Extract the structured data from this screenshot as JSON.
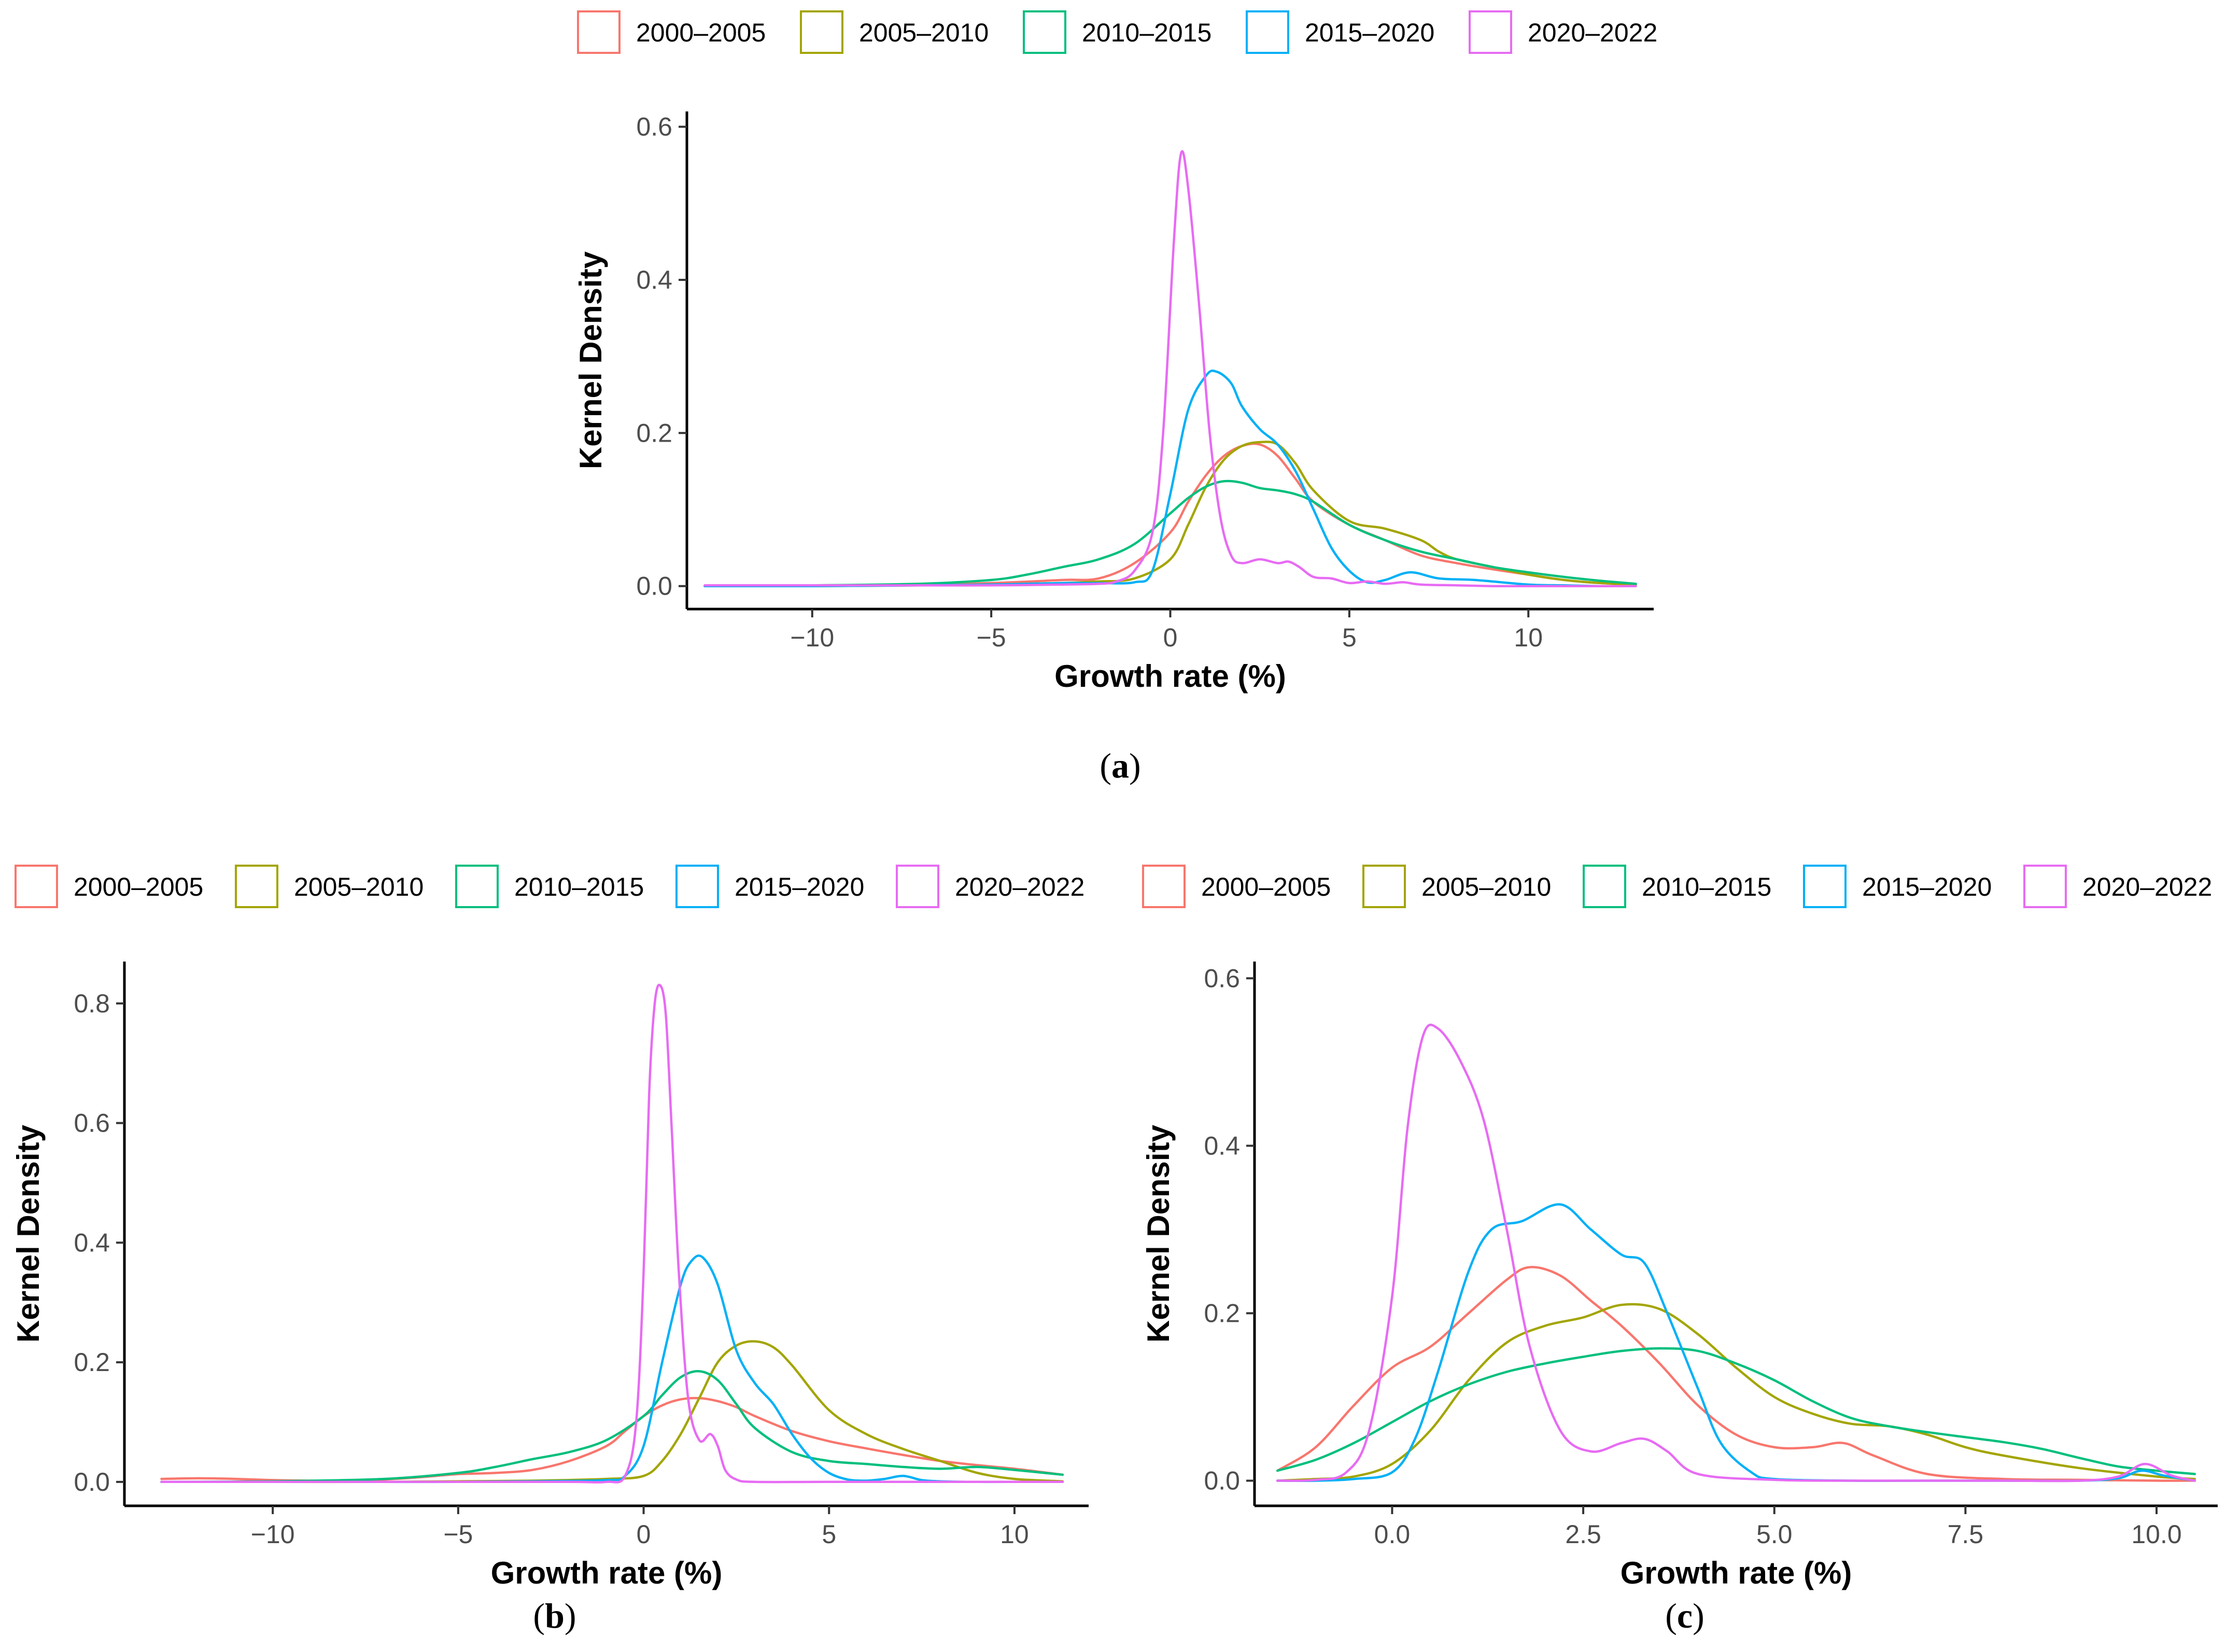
{
  "figure": {
    "colors": {
      "2000–2005": "#F8766D",
      "2005–2010": "#A3A500",
      "2010–2015": "#00BF7D",
      "2015–2020": "#00B0F6",
      "2020–2022": "#E76BF3"
    }
  },
  "chart_data": [
    {
      "id": "a",
      "type": "line",
      "panel_label": "a",
      "title": "",
      "xlabel": "Growth rate (%)",
      "ylabel": "Kernel Density",
      "xlim": [
        -13.5,
        13.5
      ],
      "ylim": [
        -0.03,
        0.62
      ],
      "xticks": [
        -10,
        -5,
        0,
        5,
        10
      ],
      "xtick_labels": [
        "−10",
        "−5",
        "0",
        "5",
        "10"
      ],
      "yticks": [
        0.0,
        0.2,
        0.4,
        0.6
      ],
      "ytick_labels": [
        "0.0",
        "0.2",
        "0.4",
        "0.6"
      ],
      "grid": false,
      "legend_position": "top",
      "series": [
        {
          "name": "2000–2005",
          "x": [
            -13,
            -10,
            -7,
            -5,
            -3,
            -2,
            -1,
            0,
            0.5,
            1,
            1.5,
            2,
            2.5,
            3,
            3.5,
            4,
            5,
            6,
            7,
            8,
            9,
            10,
            11,
            12,
            13
          ],
          "y": [
            0.0,
            0.001,
            0.002,
            0.004,
            0.008,
            0.01,
            0.03,
            0.07,
            0.11,
            0.145,
            0.17,
            0.183,
            0.185,
            0.17,
            0.14,
            0.11,
            0.08,
            0.06,
            0.04,
            0.03,
            0.022,
            0.015,
            0.008,
            0.004,
            0.002
          ]
        },
        {
          "name": "2005–2010",
          "x": [
            -13,
            -10,
            -7,
            -5,
            -3,
            -2,
            -1,
            0,
            0.5,
            1,
            1.5,
            2,
            2.5,
            3,
            3.5,
            4,
            5,
            6,
            7,
            7.5,
            8,
            9,
            10,
            11,
            12,
            13
          ],
          "y": [
            0.0,
            0.0,
            0.001,
            0.002,
            0.004,
            0.006,
            0.01,
            0.035,
            0.08,
            0.13,
            0.165,
            0.183,
            0.188,
            0.185,
            0.16,
            0.125,
            0.085,
            0.075,
            0.06,
            0.045,
            0.035,
            0.025,
            0.015,
            0.008,
            0.004,
            0.002
          ]
        },
        {
          "name": "2010–2015",
          "x": [
            -13,
            -10,
            -7,
            -5,
            -4,
            -3,
            -2,
            -1,
            0,
            0.5,
            1,
            1.5,
            2,
            2.5,
            3,
            3.5,
            4,
            5,
            6,
            7,
            8,
            9,
            10,
            11,
            12,
            13
          ],
          "y": [
            0.0,
            0.001,
            0.003,
            0.008,
            0.015,
            0.025,
            0.035,
            0.055,
            0.095,
            0.115,
            0.13,
            0.137,
            0.135,
            0.128,
            0.125,
            0.12,
            0.11,
            0.08,
            0.06,
            0.045,
            0.035,
            0.025,
            0.018,
            0.012,
            0.007,
            0.003
          ]
        },
        {
          "name": "2015–2020",
          "x": [
            -13,
            -10,
            -7,
            -5,
            -3,
            -2,
            -1,
            -0.5,
            0,
            0.5,
            1,
            1.3,
            1.7,
            2,
            2.5,
            3,
            3.5,
            4,
            4.5,
            5,
            5.5,
            6,
            6.7,
            7.5,
            8.5,
            10,
            11,
            12,
            13
          ],
          "y": [
            0.0,
            0.0,
            0.001,
            0.002,
            0.004,
            0.004,
            0.005,
            0.02,
            0.12,
            0.23,
            0.275,
            0.28,
            0.265,
            0.235,
            0.205,
            0.185,
            0.15,
            0.1,
            0.05,
            0.02,
            0.005,
            0.008,
            0.018,
            0.01,
            0.008,
            0.002,
            0.001,
            0.0,
            0.0
          ]
        },
        {
          "name": "2020–2022",
          "x": [
            -13,
            -10,
            -7,
            -5,
            -3,
            -2,
            -1.5,
            -1,
            -0.5,
            -0.2,
            0.1,
            0.3,
            0.5,
            0.8,
            1.1,
            1.4,
            1.7,
            2,
            2.5,
            3,
            3.3,
            3.6,
            4,
            4.5,
            5,
            5.5,
            6,
            6.5,
            7,
            8,
            9,
            10,
            11,
            12,
            13
          ],
          "y": [
            0.001,
            0.001,
            0.001,
            0.001,
            0.002,
            0.003,
            0.006,
            0.02,
            0.07,
            0.2,
            0.45,
            0.565,
            0.52,
            0.37,
            0.2,
            0.09,
            0.04,
            0.03,
            0.035,
            0.03,
            0.032,
            0.025,
            0.012,
            0.01,
            0.004,
            0.006,
            0.003,
            0.005,
            0.002,
            0.001,
            0.0,
            0.0,
            0.0,
            0.0,
            0.0
          ]
        }
      ]
    },
    {
      "id": "b",
      "type": "line",
      "panel_label": "b",
      "title": "",
      "xlabel": "Growth rate (%)",
      "ylabel": "Kernel Density",
      "xlim": [
        -14,
        12
      ],
      "ylim": [
        -0.04,
        0.87
      ],
      "xticks": [
        -10,
        -5,
        0,
        5,
        10
      ],
      "xtick_labels": [
        "−10",
        "−5",
        "0",
        "5",
        "10"
      ],
      "yticks": [
        0.0,
        0.2,
        0.4,
        0.6,
        0.8
      ],
      "ytick_labels": [
        "0.0",
        "0.2",
        "0.4",
        "0.6",
        "0.8"
      ],
      "grid": false,
      "legend_position": "top",
      "series": [
        {
          "name": "2000–2005",
          "x": [
            -13,
            -12,
            -11,
            -10,
            -9,
            -8,
            -7,
            -6,
            -5,
            -4,
            -3,
            -2,
            -1,
            -0.5,
            0,
            0.5,
            1,
            1.5,
            2,
            2.5,
            3,
            4,
            5,
            6,
            7,
            8,
            9,
            10,
            11.3
          ],
          "y": [
            0.005,
            0.006,
            0.005,
            0.003,
            0.002,
            0.002,
            0.004,
            0.008,
            0.013,
            0.015,
            0.02,
            0.035,
            0.06,
            0.085,
            0.11,
            0.128,
            0.138,
            0.14,
            0.135,
            0.125,
            0.11,
            0.085,
            0.068,
            0.056,
            0.045,
            0.035,
            0.028,
            0.022,
            0.012
          ]
        },
        {
          "name": "2005–2010",
          "x": [
            -13,
            -10,
            -7,
            -5,
            -3,
            -1,
            0,
            0.5,
            1,
            1.5,
            2,
            2.5,
            3,
            3.5,
            4,
            5,
            6,
            7,
            8,
            9,
            10,
            11.3
          ],
          "y": [
            0.0,
            0.0,
            0.0,
            0.001,
            0.002,
            0.005,
            0.01,
            0.035,
            0.08,
            0.14,
            0.2,
            0.228,
            0.235,
            0.225,
            0.195,
            0.12,
            0.08,
            0.055,
            0.035,
            0.015,
            0.005,
            0.001
          ]
        },
        {
          "name": "2010–2015",
          "x": [
            -13,
            -10,
            -7,
            -5,
            -4,
            -3,
            -2,
            -1,
            0,
            0.5,
            1,
            1.5,
            2,
            2.5,
            3,
            4,
            5,
            6,
            7,
            8,
            9,
            10,
            11.3
          ],
          "y": [
            0.0,
            0.001,
            0.005,
            0.015,
            0.025,
            0.038,
            0.05,
            0.07,
            0.11,
            0.145,
            0.175,
            0.185,
            0.17,
            0.13,
            0.09,
            0.05,
            0.035,
            0.03,
            0.025,
            0.022,
            0.025,
            0.02,
            0.012
          ]
        },
        {
          "name": "2015–2020",
          "x": [
            -13,
            -10,
            -7,
            -5,
            -3,
            -1,
            -0.5,
            0,
            0.5,
            1,
            1.3,
            1.6,
            2,
            2.5,
            3,
            3.5,
            4,
            4.5,
            5,
            5.5,
            6,
            6.5,
            7,
            7.5,
            8,
            9,
            10,
            11.3
          ],
          "y": [
            0.0,
            0.0,
            0.0,
            0.0,
            0.001,
            0.003,
            0.01,
            0.06,
            0.2,
            0.33,
            0.37,
            0.375,
            0.33,
            0.22,
            0.165,
            0.13,
            0.08,
            0.04,
            0.015,
            0.004,
            0.002,
            0.005,
            0.01,
            0.003,
            0.001,
            0.0,
            0.0,
            0.0
          ]
        },
        {
          "name": "2020–2022",
          "x": [
            -13,
            -10,
            -5,
            -2,
            -1,
            -0.5,
            -0.2,
            0,
            0.15,
            0.3,
            0.45,
            0.6,
            0.75,
            0.95,
            1.2,
            1.5,
            1.8,
            2.0,
            2.2,
            2.5,
            3,
            5,
            8,
            11.3
          ],
          "y": [
            0.0,
            0.0,
            0.0,
            0.0,
            0.0,
            0.01,
            0.1,
            0.35,
            0.65,
            0.8,
            0.83,
            0.78,
            0.6,
            0.35,
            0.14,
            0.07,
            0.08,
            0.06,
            0.02,
            0.004,
            0.0,
            0.0,
            0.0,
            0.0
          ]
        }
      ]
    },
    {
      "id": "c",
      "type": "line",
      "panel_label": "c",
      "title": "",
      "xlabel": "Growth rate (%)",
      "ylabel": "Kernel Density",
      "xlim": [
        -1.8,
        10.8
      ],
      "ylim": [
        -0.03,
        0.62
      ],
      "xticks": [
        0.0,
        2.5,
        5.0,
        7.5,
        10.0
      ],
      "xtick_labels": [
        "0.0",
        "2.5",
        "5.0",
        "7.5",
        "10.0"
      ],
      "yticks": [
        0.0,
        0.2,
        0.4,
        0.6
      ],
      "ytick_labels": [
        "0.0",
        "0.2",
        "0.4",
        "0.6"
      ],
      "grid": false,
      "legend_position": "top",
      "series": [
        {
          "name": "2000–2005",
          "x": [
            -1.5,
            -1,
            -0.5,
            0,
            0.5,
            1,
            1.5,
            1.8,
            2.2,
            2.6,
            3,
            3.5,
            4,
            4.5,
            5,
            5.5,
            5.9,
            6.3,
            7,
            8,
            9,
            10,
            10.5
          ],
          "y": [
            0.012,
            0.04,
            0.09,
            0.135,
            0.16,
            0.2,
            0.24,
            0.255,
            0.245,
            0.215,
            0.185,
            0.14,
            0.09,
            0.055,
            0.04,
            0.04,
            0.045,
            0.03,
            0.008,
            0.002,
            0.001,
            0.0,
            0.0
          ]
        },
        {
          "name": "2005–2010",
          "x": [
            -1.5,
            -1,
            -0.5,
            0,
            0.5,
            1,
            1.5,
            2,
            2.5,
            3,
            3.5,
            4,
            4.5,
            5,
            5.5,
            6,
            6.5,
            7,
            7.5,
            8,
            9,
            10,
            10.5
          ],
          "y": [
            0.0,
            0.002,
            0.005,
            0.02,
            0.06,
            0.12,
            0.165,
            0.185,
            0.195,
            0.21,
            0.205,
            0.175,
            0.135,
            0.1,
            0.08,
            0.068,
            0.065,
            0.055,
            0.04,
            0.03,
            0.015,
            0.005,
            0.002
          ]
        },
        {
          "name": "2010–2015",
          "x": [
            -1.5,
            -1,
            -0.5,
            0,
            0.5,
            1,
            1.5,
            2,
            2.5,
            3,
            3.5,
            4,
            4.5,
            5,
            5.5,
            6,
            6.5,
            7,
            7.5,
            8,
            8.5,
            9,
            9.5,
            10,
            10.5
          ],
          "y": [
            0.012,
            0.025,
            0.045,
            0.07,
            0.095,
            0.115,
            0.13,
            0.14,
            0.148,
            0.155,
            0.158,
            0.155,
            0.14,
            0.12,
            0.095,
            0.075,
            0.065,
            0.058,
            0.052,
            0.046,
            0.038,
            0.027,
            0.017,
            0.012,
            0.008
          ]
        },
        {
          "name": "2015–2020",
          "x": [
            -1.5,
            -1,
            -0.5,
            0,
            0.3,
            0.6,
            1,
            1.3,
            1.7,
            2.2,
            2.6,
            3,
            3.3,
            3.6,
            4,
            4.3,
            4.7,
            5,
            6,
            7,
            8,
            9,
            9.5,
            9.8,
            10.1,
            10.5
          ],
          "y": [
            0.0,
            0.0,
            0.002,
            0.01,
            0.05,
            0.13,
            0.25,
            0.3,
            0.31,
            0.33,
            0.3,
            0.27,
            0.26,
            0.2,
            0.11,
            0.045,
            0.01,
            0.002,
            0.0,
            0.0,
            0.0,
            0.0,
            0.003,
            0.012,
            0.006,
            0.0
          ]
        },
        {
          "name": "2020–2022",
          "x": [
            -1.5,
            -1,
            -0.6,
            -0.3,
            0,
            0.2,
            0.4,
            0.6,
            0.9,
            1.2,
            1.5,
            1.8,
            2.2,
            2.6,
            3,
            3.3,
            3.6,
            4,
            5,
            6,
            7,
            8,
            9,
            9.5,
            9.85,
            10.2,
            10.5
          ],
          "y": [
            0.0,
            0.001,
            0.01,
            0.06,
            0.22,
            0.42,
            0.53,
            0.54,
            0.5,
            0.43,
            0.3,
            0.16,
            0.06,
            0.035,
            0.045,
            0.05,
            0.035,
            0.008,
            0.001,
            0.0,
            0.0,
            0.0,
            0.0,
            0.005,
            0.02,
            0.006,
            0.0
          ]
        }
      ]
    }
  ]
}
